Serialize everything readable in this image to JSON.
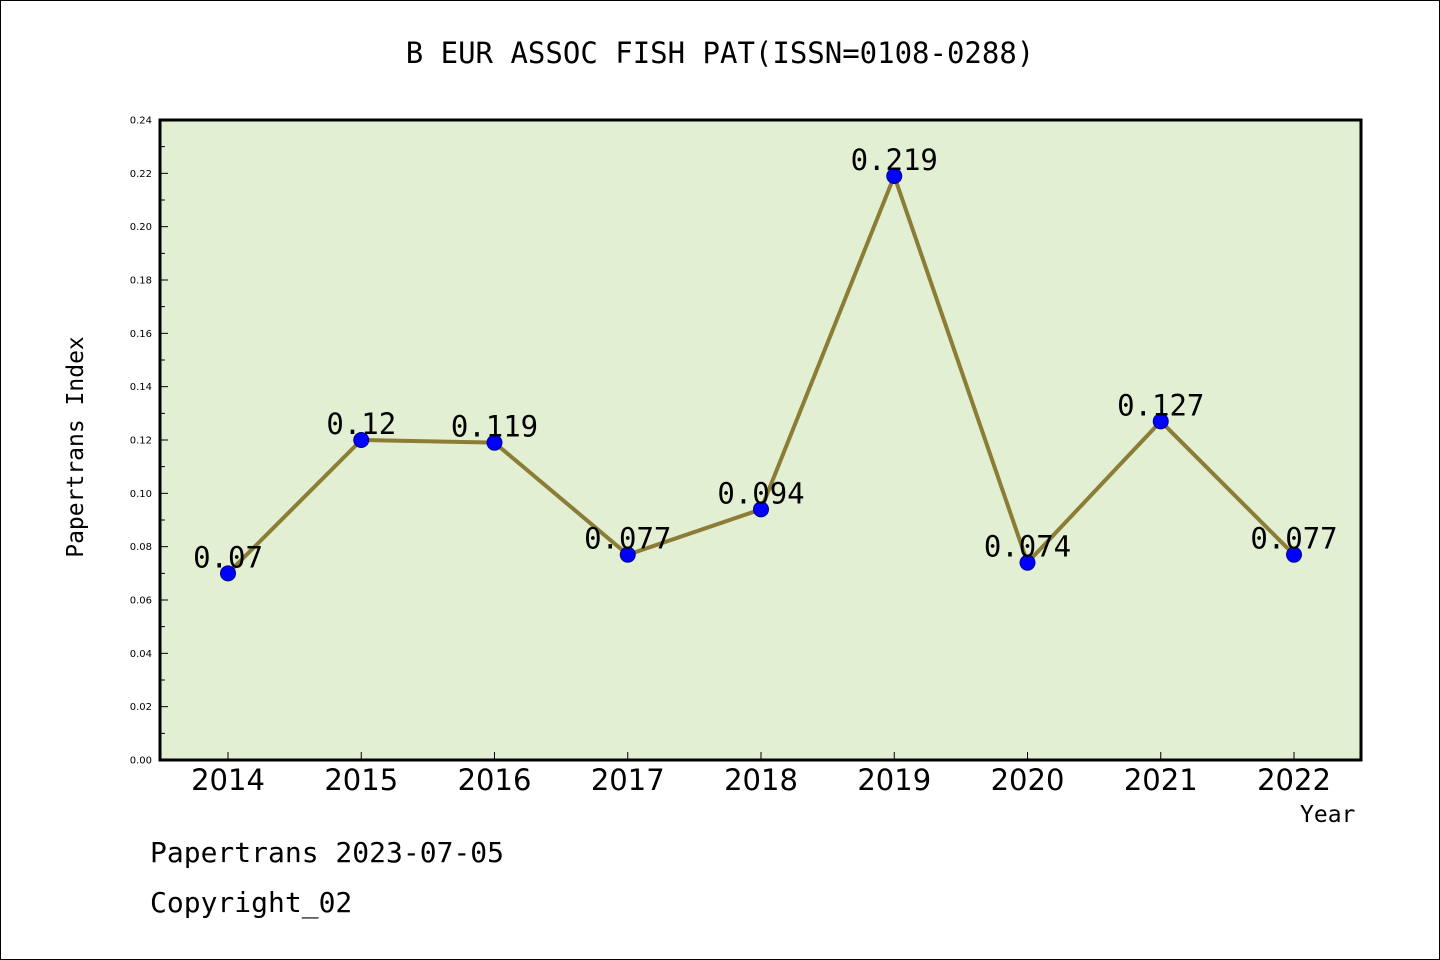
{
  "chart_data": {
    "type": "line",
    "title": "B EUR ASSOC FISH PAT(ISSN=0108-0288)",
    "xlabel": "Year",
    "ylabel": "Papertrans Index",
    "categories": [
      "2014",
      "2015",
      "2016",
      "2017",
      "2018",
      "2019",
      "2020",
      "2021",
      "2022"
    ],
    "series": [
      {
        "values": [
          0.07,
          0.12,
          0.119,
          0.077,
          0.094,
          0.219,
          0.074,
          0.127,
          0.077
        ],
        "labels": [
          "0.07",
          "0.12",
          "0.119",
          "0.077",
          "0.094",
          "0.219",
          "0.074",
          "0.127",
          "0.077"
        ]
      }
    ],
    "ylim": [
      0,
      0.24
    ],
    "yticks": [
      "0.00",
      "0.02",
      "0.04",
      "0.06",
      "0.08",
      "0.10",
      "0.12",
      "0.14",
      "0.16",
      "0.18",
      "0.20",
      "0.22",
      "0.24"
    ],
    "grid": false,
    "colors": {
      "plot_background": "#e2efd3",
      "line": "#8b7d35",
      "marker": "#0000ff"
    }
  },
  "footer": {
    "line1": "Papertrans 2023-07-05",
    "line2": "Copyright_02"
  }
}
